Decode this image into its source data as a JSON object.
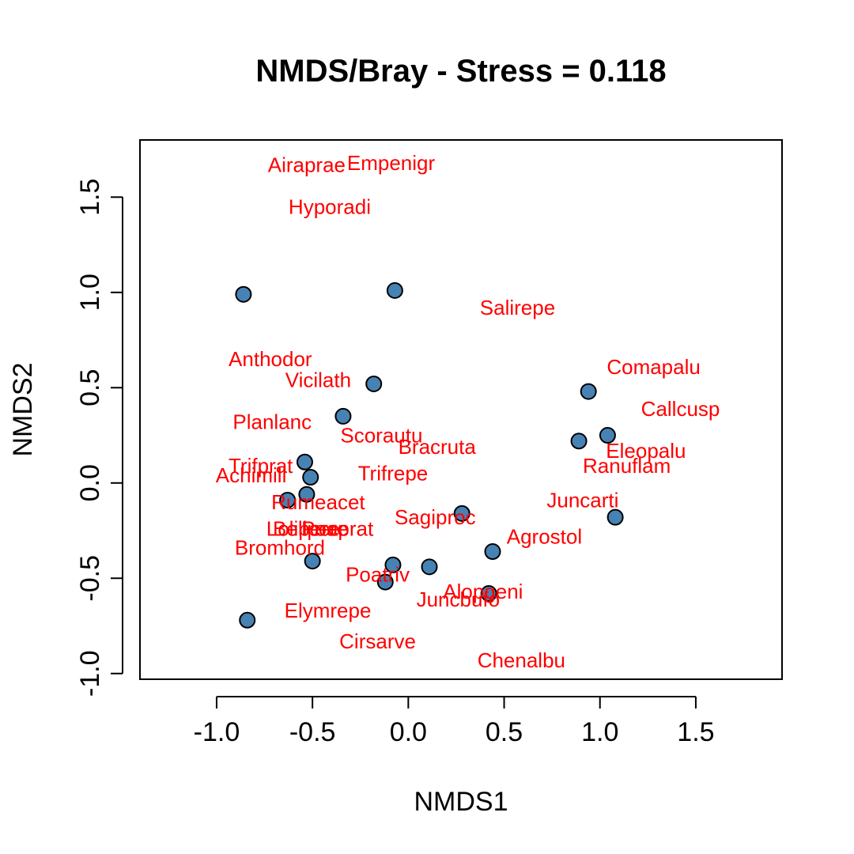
{
  "chart_data": {
    "type": "scatter",
    "title": "NMDS/Bray - Stress = 0.118",
    "xlabel": "NMDS1",
    "ylabel": "NMDS2",
    "xlim": [
      -1.4,
      1.95
    ],
    "ylim": [
      -1.03,
      1.8
    ],
    "xticks": [
      -1.0,
      -0.5,
      0.0,
      0.5,
      1.0,
      1.5
    ],
    "xtick_labels": [
      "-1.0",
      "-0.5",
      "0.0",
      "0.5",
      "1.0",
      "1.5"
    ],
    "yticks": [
      -1.0,
      -0.5,
      0.0,
      0.5,
      1.0,
      1.5
    ],
    "ytick_labels": [
      "-1.0",
      "-0.5",
      "0.0",
      "0.5",
      "1.0",
      "1.5"
    ],
    "grid": false,
    "point_color": "#4682B4",
    "point_edge_color": "#000000",
    "label_color": "#FF0000",
    "sites": [
      {
        "x": -0.86,
        "y": 0.99
      },
      {
        "x": -0.07,
        "y": 1.01
      },
      {
        "x": -0.18,
        "y": 0.52
      },
      {
        "x": -0.34,
        "y": 0.35
      },
      {
        "x": -0.54,
        "y": 0.11
      },
      {
        "x": -0.51,
        "y": 0.03
      },
      {
        "x": -0.53,
        "y": -0.06
      },
      {
        "x": -0.63,
        "y": -0.09
      },
      {
        "x": -0.5,
        "y": -0.41
      },
      {
        "x": -0.84,
        "y": -0.72
      },
      {
        "x": -0.08,
        "y": -0.43
      },
      {
        "x": -0.12,
        "y": -0.52
      },
      {
        "x": 0.11,
        "y": -0.44
      },
      {
        "x": 0.28,
        "y": -0.16
      },
      {
        "x": 0.44,
        "y": -0.36
      },
      {
        "x": 0.42,
        "y": -0.58
      },
      {
        "x": 0.94,
        "y": 0.48
      },
      {
        "x": 0.89,
        "y": 0.22
      },
      {
        "x": 1.04,
        "y": 0.25
      },
      {
        "x": 1.08,
        "y": -0.18
      }
    ],
    "species": [
      {
        "name": "Airaprae",
        "x": -0.53,
        "y": 1.67
      },
      {
        "name": "Empenigr",
        "x": -0.09,
        "y": 1.68
      },
      {
        "name": "Hyporadi",
        "x": -0.41,
        "y": 1.45
      },
      {
        "name": "Salirepe",
        "x": 0.57,
        "y": 0.92
      },
      {
        "name": "Anthodor",
        "x": -0.72,
        "y": 0.65
      },
      {
        "name": "Vicilath",
        "x": -0.47,
        "y": 0.54
      },
      {
        "name": "Comapalu",
        "x": 1.28,
        "y": 0.61
      },
      {
        "name": "Callcusp",
        "x": 1.42,
        "y": 0.39
      },
      {
        "name": "Planlanc",
        "x": -0.71,
        "y": 0.32
      },
      {
        "name": "Scorautu",
        "x": -0.14,
        "y": 0.25
      },
      {
        "name": "Bracruta",
        "x": 0.15,
        "y": 0.19
      },
      {
        "name": "Eleopalu",
        "x": 1.24,
        "y": 0.17
      },
      {
        "name": "Trifprat",
        "x": -0.77,
        "y": 0.09
      },
      {
        "name": "Ranuflam",
        "x": 1.14,
        "y": 0.09
      },
      {
        "name": "Achimill",
        "x": -0.82,
        "y": 0.04
      },
      {
        "name": "Trifrepe",
        "x": -0.08,
        "y": 0.05
      },
      {
        "name": "Juncarti",
        "x": 0.91,
        "y": -0.09
      },
      {
        "name": "Rumeacet",
        "x": -0.47,
        "y": -0.1
      },
      {
        "name": "Sagiproc",
        "x": 0.14,
        "y": -0.18
      },
      {
        "name": "Poaprat",
        "x": -0.37,
        "y": -0.24
      },
      {
        "name": "Bellpere",
        "x": -0.51,
        "y": -0.24
      },
      {
        "name": "Lolipere",
        "x": -0.55,
        "y": -0.24
      },
      {
        "name": "Agrostol",
        "x": 0.71,
        "y": -0.28
      },
      {
        "name": "Bromhord",
        "x": -0.67,
        "y": -0.34
      },
      {
        "name": "Poatriv",
        "x": -0.16,
        "y": -0.48
      },
      {
        "name": "Alopgeni",
        "x": 0.39,
        "y": -0.57
      },
      {
        "name": "Juncbufo",
        "x": 0.26,
        "y": -0.61
      },
      {
        "name": "Elymrepe",
        "x": -0.42,
        "y": -0.67
      },
      {
        "name": "Cirsarve",
        "x": -0.16,
        "y": -0.83
      },
      {
        "name": "Chenalbu",
        "x": 0.59,
        "y": -0.93
      }
    ]
  }
}
